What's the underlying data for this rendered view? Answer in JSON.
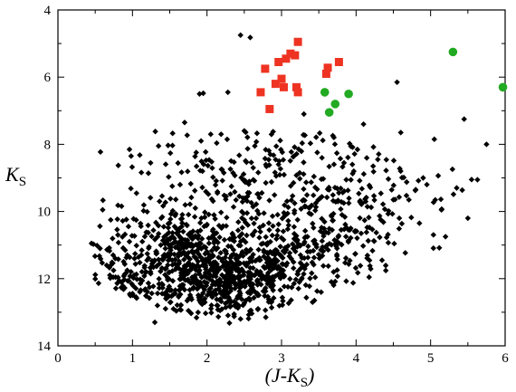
{
  "chart_data": {
    "type": "scatter",
    "xlabel": "(J-K",
    "xlabel_sub": "S",
    "xlabel_close": ")",
    "ylabel": "K",
    "ylabel_sub": "S",
    "xlim": [
      0,
      6
    ],
    "ylim": [
      4,
      14
    ],
    "y_inverted": true,
    "grid": false,
    "x_ticks": [
      0,
      1,
      2,
      3,
      4,
      5,
      6
    ],
    "y_ticks": [
      4,
      6,
      8,
      10,
      12,
      14
    ],
    "series": [
      {
        "marker": "square",
        "color": "#ee3322",
        "points": [
          [
            2.72,
            6.45
          ],
          [
            2.78,
            5.75
          ],
          [
            2.84,
            6.95
          ],
          [
            2.92,
            6.2
          ],
          [
            2.96,
            5.55
          ],
          [
            3.0,
            6.05
          ],
          [
            3.03,
            6.3
          ],
          [
            3.06,
            5.45
          ],
          [
            3.12,
            5.3
          ],
          [
            3.18,
            5.35
          ],
          [
            3.22,
            4.95
          ],
          [
            3.2,
            6.3
          ],
          [
            3.22,
            6.45
          ],
          [
            3.6,
            5.9
          ],
          [
            3.62,
            5.72
          ],
          [
            3.77,
            5.55
          ]
        ]
      },
      {
        "marker": "circle",
        "color": "#22aa22",
        "points": [
          [
            3.58,
            6.45
          ],
          [
            3.64,
            7.05
          ],
          [
            3.72,
            6.8
          ],
          [
            3.9,
            6.5
          ],
          [
            5.3,
            5.25
          ],
          [
            5.97,
            6.3
          ]
        ]
      },
      {
        "marker": "diamond",
        "color": "#000000",
        "points": [
          [
            2.45,
            4.75
          ],
          [
            2.58,
            4.82
          ],
          [
            1.9,
            6.5
          ],
          [
            1.95,
            6.48
          ],
          [
            2.28,
            6.45
          ],
          [
            4.55,
            6.15
          ],
          [
            5.45,
            7.25
          ],
          [
            5.75,
            8.0
          ],
          [
            1.7,
            7.35
          ],
          [
            2.05,
            7.7
          ],
          [
            2.5,
            7.6
          ],
          [
            3.3,
            7.1
          ],
          [
            4.1,
            7.4
          ],
          [
            4.6,
            7.65
          ],
          [
            5.05,
            7.85
          ],
          [
            0.6,
            9.95
          ],
          [
            0.45,
            10.95
          ],
          [
            4.85,
            10.35
          ],
          [
            5.2,
            10.75
          ],
          [
            5.5,
            10.2
          ],
          [
            1.35,
            8.05
          ],
          [
            2.85,
            8.3
          ],
          [
            3.95,
            8.6
          ],
          [
            4.9,
            9.0
          ],
          [
            5.35,
            9.3
          ],
          [
            1.55,
            12.9
          ],
          [
            1.45,
            12.4
          ],
          [
            1.3,
            13.3
          ],
          [
            2.45,
            13.2
          ],
          [
            2.4,
            12.75
          ],
          [
            4.8,
            9.35
          ],
          [
            4.95,
            9.2
          ],
          [
            4.5,
            9.65
          ],
          [
            5.55,
            9.05
          ]
        ]
      }
    ],
    "clusters": [
      {
        "cx": 2.3,
        "cy": 12.0,
        "sx": 0.55,
        "sy": 0.6,
        "n": 620
      },
      {
        "cx": 1.3,
        "cy": 11.9,
        "sx": 0.45,
        "sy": 0.9,
        "n": 180
      },
      {
        "cx": 0.9,
        "cy": 12.4,
        "sx": 0.35,
        "sy": 0.7,
        "n": 110
      },
      {
        "cx": 2.8,
        "cy": 10.1,
        "sx": 0.9,
        "sy": 1.1,
        "n": 300
      },
      {
        "cx": 3.6,
        "cy": 11.1,
        "sx": 0.55,
        "sy": 0.65,
        "n": 130
      },
      {
        "cx": 3.9,
        "cy": 9.4,
        "sx": 0.7,
        "sy": 0.9,
        "n": 110
      },
      {
        "cx": 2.4,
        "cy": 8.6,
        "sx": 0.6,
        "sy": 0.55,
        "n": 70
      },
      {
        "cx": 1.6,
        "cy": 10.7,
        "sx": 0.3,
        "sy": 0.35,
        "n": 90
      },
      {
        "cx": 3.2,
        "cy": 7.8,
        "sx": 0.35,
        "sy": 0.35,
        "n": 28
      }
    ]
  }
}
